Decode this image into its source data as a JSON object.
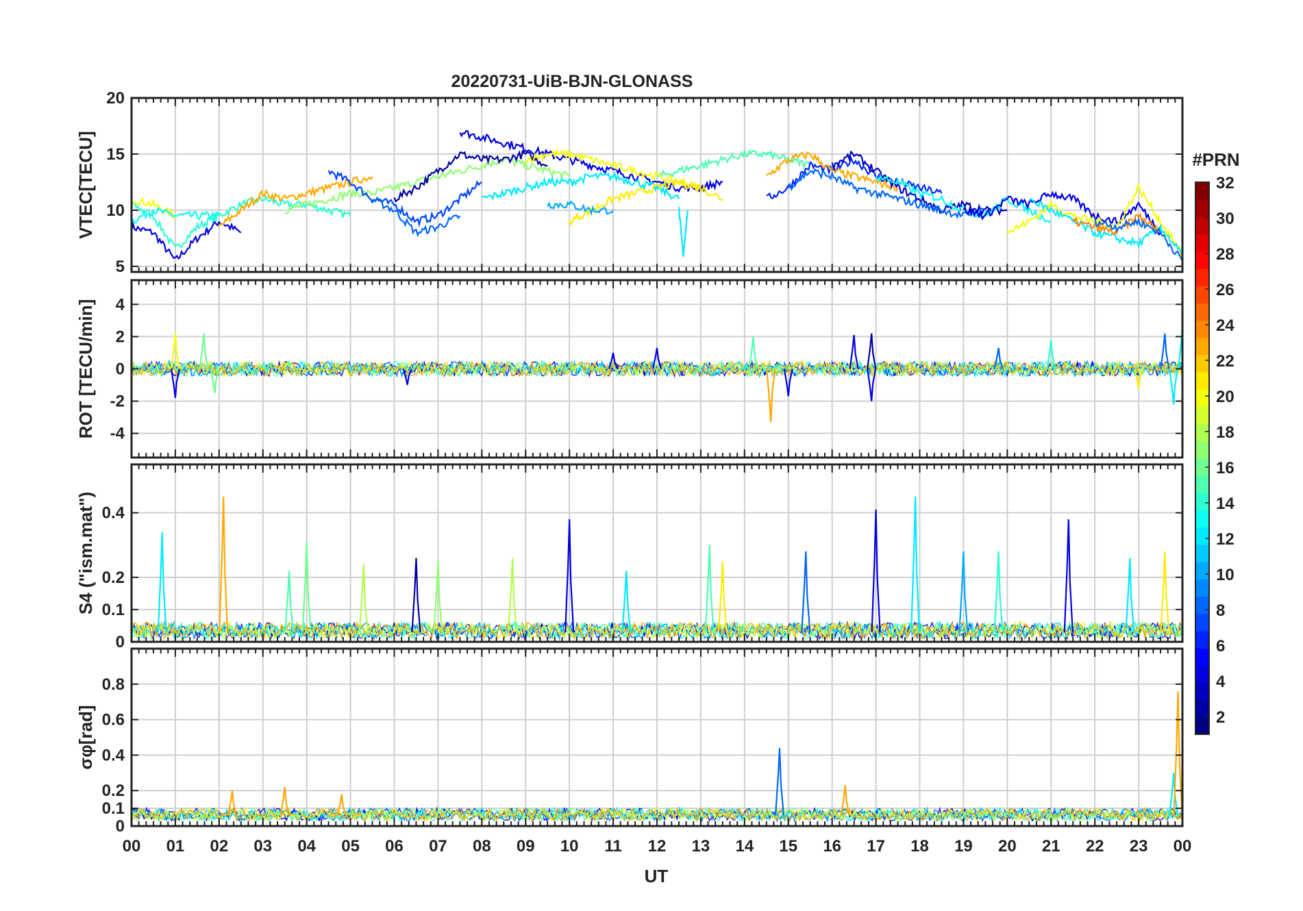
{
  "chart_data": {
    "type": "line",
    "title": "20220731-UiB-BJN-GLONASS",
    "xlabel": "UT",
    "x_tick_labels": [
      "00",
      "01",
      "02",
      "03",
      "04",
      "05",
      "06",
      "07",
      "08",
      "09",
      "10",
      "11",
      "12",
      "13",
      "14",
      "15",
      "16",
      "17",
      "18",
      "19",
      "20",
      "21",
      "22",
      "23",
      "00"
    ],
    "xlim": [
      0,
      24
    ],
    "colormap": "jet",
    "colorbar": {
      "label": "#PRN",
      "range": [
        1,
        32
      ],
      "ticks": [
        "2",
        "4",
        "6",
        "8",
        "10",
        "12",
        "14",
        "16",
        "18",
        "20",
        "22",
        "24",
        "26",
        "28",
        "30",
        "32"
      ]
    },
    "grid": true,
    "panels": [
      {
        "ylabel": "VTEC[TECU]",
        "ylim": [
          4.5,
          20
        ],
        "y_ticks": [
          5,
          10,
          15,
          20
        ],
        "y_tick_labels": [
          "5",
          "10",
          "15",
          "20"
        ],
        "series": [
          {
            "prn": 4,
            "x": [
              0,
              0.5,
              1,
              1.5,
              2,
              2.5
            ],
            "y": [
              8.5,
              8,
              5.5,
              7.5,
              9,
              8
            ]
          },
          {
            "prn": 14,
            "x": [
              0,
              0.5,
              1,
              1.5,
              2,
              2.5,
              3,
              3.5,
              4,
              4.5,
              5
            ],
            "y": [
              10.5,
              9.5,
              6.5,
              8.5,
              9.5,
              10.5,
              11,
              10.5,
              10.5,
              10,
              9.5
            ]
          },
          {
            "prn": 20,
            "x": [
              0,
              0.5,
              1
            ],
            "y": [
              11,
              10.5,
              9.5
            ]
          },
          {
            "prn": 13,
            "x": [
              0,
              0.5,
              1,
              1.5,
              2
            ],
            "y": [
              9,
              10,
              9.5,
              9.5,
              9.5
            ]
          },
          {
            "prn": 23,
            "x": [
              2,
              2.5,
              3,
              3.5,
              4,
              4.5,
              5,
              5.5
            ],
            "y": [
              8.5,
              10,
              11.5,
              11,
              11.5,
              12,
              12.5,
              13
            ]
          },
          {
            "prn": 17,
            "x": [
              3.5,
              4,
              4.5,
              5,
              5.5,
              6,
              6.5,
              7,
              7.5,
              8,
              8.5,
              9,
              9.5,
              10
            ],
            "y": [
              10,
              10.5,
              11,
              11.5,
              11.5,
              12,
              12.5,
              13,
              13.5,
              14,
              14.5,
              14,
              13.5,
              13
            ]
          },
          {
            "prn": 7,
            "x": [
              4.5,
              5,
              5.5,
              6,
              6.5,
              7,
              7.5,
              8
            ],
            "y": [
              13.5,
              12.5,
              11,
              10.5,
              9,
              9.5,
              11,
              12.5
            ]
          },
          {
            "prn": 2,
            "x": [
              6,
              6.5,
              7,
              7.5,
              8,
              8.5,
              9,
              9.5
            ],
            "y": [
              11,
              12,
              13.5,
              15,
              14.5,
              14.5,
              15,
              14
            ]
          },
          {
            "prn": 4,
            "x": [
              7.5,
              8,
              8.5,
              9,
              9.5,
              10,
              10.5,
              11,
              11.5,
              12,
              12.5,
              13,
              13.5
            ],
            "y": [
              17,
              16.5,
              16,
              15.5,
              15,
              14.5,
              14,
              13.5,
              13,
              12.5,
              12,
              12,
              12.5
            ]
          },
          {
            "prn": 8,
            "x": [
              5.5,
              6,
              6.5,
              7,
              7.5
            ],
            "y": [
              11,
              10,
              8,
              8.5,
              9.5
            ]
          },
          {
            "prn": 12,
            "x": [
              8,
              8.5,
              9,
              9.5,
              10,
              10.5,
              11,
              11.5,
              12,
              12.5
            ],
            "y": [
              11,
              11.5,
              12,
              12.5,
              12.5,
              13,
              13,
              12.5,
              12,
              11
            ]
          },
          {
            "prn": 15,
            "x": [
              12,
              12.5,
              13,
              13.5,
              14,
              14.5,
              15,
              15.5
            ],
            "y": [
              13,
              13.5,
              14,
              14.5,
              15,
              15,
              14.5,
              14
            ]
          },
          {
            "prn": 20,
            "x": [
              9,
              9.5,
              10,
              10.5,
              11,
              11.5,
              12,
              12.5,
              13
            ],
            "y": [
              14.5,
              15,
              15,
              14.5,
              14,
              13.5,
              13,
              12.5,
              12
            ]
          },
          {
            "prn": 21,
            "x": [
              10,
              10.5,
              11,
              11.5,
              12,
              12.5,
              13,
              13.5
            ],
            "y": [
              9,
              10,
              11,
              11.5,
              12,
              12.5,
              12,
              11
            ]
          },
          {
            "prn": 10,
            "x": [
              9.5,
              10,
              10.5,
              11
            ],
            "y": [
              10.5,
              10.5,
              10,
              10
            ]
          },
          {
            "prn": 12,
            "x": [
              12.5,
              12.6,
              12.7
            ],
            "y": [
              10,
              6,
              10
            ]
          },
          {
            "prn": 6,
            "x": [
              14.5,
              15,
              15.5,
              16,
              16.5,
              17,
              17.5,
              18,
              18.5
            ],
            "y": [
              11,
              12,
              14,
              13.5,
              14.5,
              13,
              12.5,
              12,
              11.5
            ]
          },
          {
            "prn": 23,
            "x": [
              14.5,
              15,
              15.5,
              16,
              16.5,
              17,
              17.5
            ],
            "y": [
              13,
              14.5,
              15,
              13.5,
              13,
              12.5,
              12
            ]
          },
          {
            "prn": 3,
            "x": [
              16,
              16.5,
              17,
              17.5,
              18,
              18.5,
              19,
              19.5,
              20
            ],
            "y": [
              14,
              15,
              13.5,
              12,
              11,
              10,
              10.5,
              10,
              10
            ]
          },
          {
            "prn": 8,
            "x": [
              15,
              15.5,
              16,
              16.5,
              17,
              17.5,
              18,
              18.5,
              19,
              19.5
            ],
            "y": [
              12,
              13.5,
              13,
              12,
              11.5,
              11,
              10.5,
              10,
              9.5,
              10
            ]
          },
          {
            "prn": 13,
            "x": [
              17,
              17.5,
              18,
              18.5,
              19,
              19.5,
              20,
              20.5,
              21
            ],
            "y": [
              13,
              12.5,
              11.5,
              11,
              10,
              9.5,
              11,
              10,
              9
            ]
          },
          {
            "prn": 4,
            "x": [
              19,
              19.5,
              20,
              20.5,
              21,
              21.5,
              22,
              22.5,
              23,
              23.5
            ],
            "y": [
              10,
              9.5,
              11,
              10.5,
              11.5,
              11,
              9.5,
              9,
              10.5,
              8
            ]
          },
          {
            "prn": 20,
            "x": [
              20,
              20.5,
              21,
              21.5,
              22,
              22.5,
              23,
              23.5,
              24
            ],
            "y": [
              8,
              9,
              10.5,
              9.5,
              9,
              8.5,
              12,
              9,
              6
            ]
          },
          {
            "prn": 12,
            "x": [
              20.5,
              21,
              21.5,
              22,
              22.5,
              23,
              23.5,
              24
            ],
            "y": [
              11,
              10,
              9,
              8,
              7.5,
              7,
              8.5,
              6
            ]
          },
          {
            "prn": 24,
            "x": [
              21.5,
              22,
              22.5,
              23,
              23.5
            ],
            "y": [
              9,
              8.5,
              8,
              9.5,
              8
            ]
          },
          {
            "prn": 8,
            "x": [
              22,
              22.5,
              23,
              23.5,
              24
            ],
            "y": [
              9,
              8.5,
              9,
              8,
              5.5
            ]
          }
        ]
      },
      {
        "ylabel": "ROT [TECU/min]",
        "ylim": [
          -5.5,
          5.5
        ],
        "y_ticks": [
          -4,
          -2,
          0,
          2,
          4
        ],
        "y_tick_labels": [
          "-4",
          "-2",
          "0",
          "2",
          "4"
        ],
        "spikes": [
          {
            "prn": 20,
            "x": 1.0,
            "y": 2.2
          },
          {
            "prn": 16,
            "x": 1.65,
            "y": 2.2
          },
          {
            "prn": 4,
            "x": 1.0,
            "y": -1.8
          },
          {
            "prn": 16,
            "x": 1.9,
            "y": -1.5
          },
          {
            "prn": 4,
            "x": 6.3,
            "y": -1.0
          },
          {
            "prn": 4,
            "x": 11.0,
            "y": 1.0
          },
          {
            "prn": 4,
            "x": 12.0,
            "y": 1.3
          },
          {
            "prn": 15,
            "x": 14.2,
            "y": 2.0
          },
          {
            "prn": 23,
            "x": 14.6,
            "y": -3.3
          },
          {
            "prn": 4,
            "x": 15.0,
            "y": -1.7
          },
          {
            "prn": 4,
            "x": 16.5,
            "y": 2.1
          },
          {
            "prn": 2,
            "x": 16.9,
            "y": 2.2
          },
          {
            "prn": 4,
            "x": 16.9,
            "y": -2.0
          },
          {
            "prn": 8,
            "x": 19.8,
            "y": 1.3
          },
          {
            "prn": 14,
            "x": 21.0,
            "y": 1.8
          },
          {
            "prn": 21,
            "x": 23.0,
            "y": -1.2
          },
          {
            "prn": 8,
            "x": 23.6,
            "y": 2.2
          },
          {
            "prn": 12,
            "x": 23.8,
            "y": -2.2
          },
          {
            "prn": 12,
            "x": 24.0,
            "y": 2.6
          }
        ]
      },
      {
        "ylabel": "S4 (\"ism.mat\")",
        "ylim": [
          0,
          0.55
        ],
        "y_ticks": [
          0,
          0.1,
          0.2,
          0.4
        ],
        "y_tick_labels": [
          "0",
          "0.1",
          "0.2",
          "0.4"
        ],
        "spikes": [
          {
            "prn": 12,
            "x": 0.7,
            "y": 0.34
          },
          {
            "prn": 23,
            "x": 2.1,
            "y": 0.45
          },
          {
            "prn": 15,
            "x": 3.6,
            "y": 0.22
          },
          {
            "prn": 16,
            "x": 4.0,
            "y": 0.31
          },
          {
            "prn": 18,
            "x": 5.3,
            "y": 0.24
          },
          {
            "prn": 2,
            "x": 6.5,
            "y": 0.26
          },
          {
            "prn": 17,
            "x": 7.0,
            "y": 0.25
          },
          {
            "prn": 18,
            "x": 8.7,
            "y": 0.26
          },
          {
            "prn": 4,
            "x": 10.0,
            "y": 0.38
          },
          {
            "prn": 12,
            "x": 11.3,
            "y": 0.22
          },
          {
            "prn": 15,
            "x": 13.2,
            "y": 0.3
          },
          {
            "prn": 21,
            "x": 13.5,
            "y": 0.25
          },
          {
            "prn": 8,
            "x": 15.4,
            "y": 0.28
          },
          {
            "prn": 4,
            "x": 17.0,
            "y": 0.41
          },
          {
            "prn": 12,
            "x": 17.9,
            "y": 0.45
          },
          {
            "prn": 10,
            "x": 19.0,
            "y": 0.28
          },
          {
            "prn": 14,
            "x": 19.8,
            "y": 0.28
          },
          {
            "prn": 4,
            "x": 21.4,
            "y": 0.38
          },
          {
            "prn": 12,
            "x": 22.8,
            "y": 0.26
          },
          {
            "prn": 21,
            "x": 23.6,
            "y": 0.28
          }
        ]
      },
      {
        "ylabel": "σφ[rad]",
        "ylim": [
          0,
          1.0
        ],
        "y_ticks": [
          0,
          0.1,
          0.2,
          0.4,
          0.6,
          0.8
        ],
        "y_tick_labels": [
          "0",
          "0.1",
          "0.2",
          "0.4",
          "0.6",
          "0.8"
        ],
        "spikes": [
          {
            "prn": 23,
            "x": 2.3,
            "y": 0.2
          },
          {
            "prn": 23,
            "x": 3.5,
            "y": 0.22
          },
          {
            "prn": 23,
            "x": 4.8,
            "y": 0.18
          },
          {
            "prn": 8,
            "x": 14.8,
            "y": 0.44
          },
          {
            "prn": 23,
            "x": 16.3,
            "y": 0.23
          },
          {
            "prn": 12,
            "x": 23.8,
            "y": 0.3
          },
          {
            "prn": 23,
            "x": 23.9,
            "y": 0.76
          }
        ]
      }
    ]
  }
}
